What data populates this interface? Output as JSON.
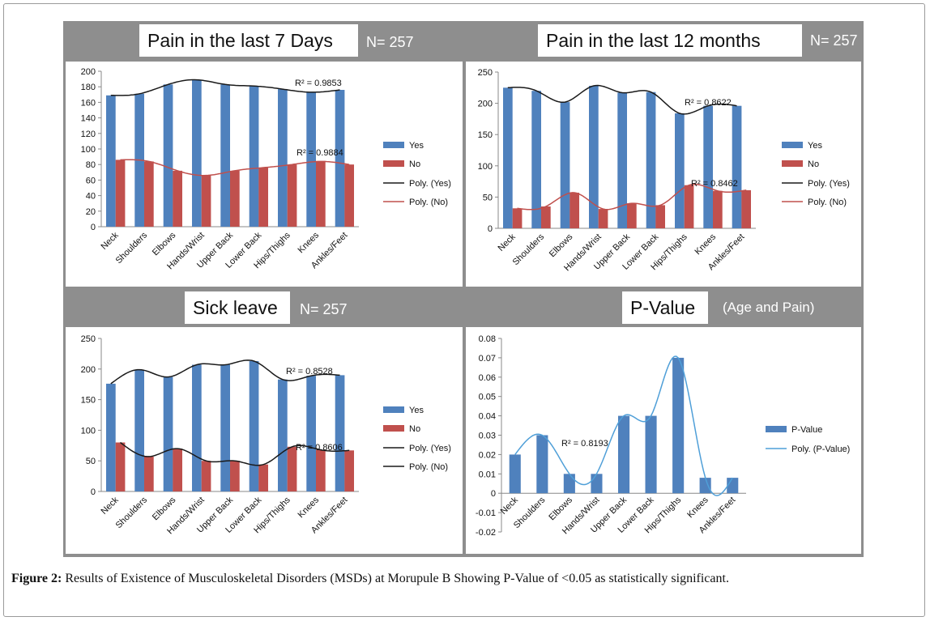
{
  "figure": {
    "caption_label": "Figure 2:",
    "caption_text": " Results of Existence of Musculoskeletal Disorders (MSDs) at Morupule B Showing P-Value of <0.05 as statistically significant."
  },
  "panels": {
    "p7": {
      "title": "Pain in the last 7 Days",
      "n": "N= 257"
    },
    "p12": {
      "title": "Pain in the last 12 months",
      "n": "N= 257"
    },
    "sick": {
      "title": "Sick leave",
      "n": "N= 257"
    },
    "pval": {
      "title": "P-Value",
      "subtitle": "(Age and Pain)"
    }
  },
  "colors": {
    "yes": "#4f81bd",
    "no": "#c0504d",
    "trend_black": "#1a1a1a",
    "trend_red": "#c0504d",
    "trend_blue": "#4f9fd8"
  },
  "chart_data": [
    {
      "id": "p7",
      "type": "bar",
      "categories": [
        "Neck",
        "Shoulders",
        "Elbows",
        "Hands/Wrist",
        "Upper Back",
        "Lower Back",
        "Hips/Thighs",
        "Knees",
        "Ankles/Feet"
      ],
      "series": [
        {
          "name": "Yes",
          "values": [
            169,
            171,
            183,
            189,
            183,
            181,
            177,
            173,
            176
          ]
        },
        {
          "name": "No",
          "values": [
            86,
            84,
            72,
            66,
            72,
            76,
            80,
            84,
            80
          ]
        }
      ],
      "trendlines": [
        {
          "name": "Poly. (Yes)",
          "r2": "R² = 0.9853"
        },
        {
          "name": "Poly. (No)",
          "r2": "R² = 0.9884"
        }
      ],
      "ylim": [
        0,
        200
      ],
      "yticks": [
        0,
        20,
        40,
        60,
        80,
        100,
        120,
        140,
        160,
        180,
        200
      ],
      "legend": "right"
    },
    {
      "id": "p12",
      "type": "bar",
      "categories": [
        "Neck",
        "Shoulders",
        "Elbows",
        "Hands/Wrist",
        "Upper Back",
        "Lower Back",
        "Hips/Thighs",
        "Knees",
        "Ankles/Feet"
      ],
      "series": [
        {
          "name": "Yes",
          "values": [
            225,
            220,
            202,
            228,
            217,
            218,
            184,
            196,
            196
          ]
        },
        {
          "name": "No",
          "values": [
            32,
            35,
            57,
            31,
            40,
            37,
            69,
            60,
            61
          ]
        }
      ],
      "trendlines": [
        {
          "name": "Poly. (Yes)",
          "r2": "R² = 0.8622"
        },
        {
          "name": "Poly. (No)",
          "r2": "R² = 0.8462"
        }
      ],
      "ylim": [
        0,
        250
      ],
      "yticks": [
        0,
        50,
        100,
        150,
        200,
        250
      ],
      "legend": "right"
    },
    {
      "id": "sick",
      "type": "bar",
      "categories": [
        "Neck",
        "Shoulders",
        "Elbows",
        "Hands/Wrist",
        "Upper Back",
        "Lower Back",
        "Hips/Thighs",
        "Knees",
        "Ankles/Feet"
      ],
      "series": [
        {
          "name": "Yes",
          "values": [
            176,
            199,
            187,
            207,
            207,
            213,
            183,
            189,
            190
          ]
        },
        {
          "name": "No",
          "values": [
            80,
            57,
            70,
            50,
            50,
            44,
            73,
            68,
            67
          ]
        }
      ],
      "trendlines": [
        {
          "name": "Poly. (Yes)",
          "r2": "R² = 0.8528"
        },
        {
          "name": "Poly. (No)",
          "r2": "R² = 0.8606"
        }
      ],
      "ylim": [
        0,
        250
      ],
      "yticks": [
        0,
        50,
        100,
        150,
        200,
        250
      ],
      "legend": "right"
    },
    {
      "id": "pval",
      "type": "bar",
      "categories": [
        "Neck",
        "Shoulders",
        "Elbows",
        "Hands/Wrist",
        "Upper Back",
        "Lower Back",
        "Hips/Thighs",
        "Knees",
        "Ankles/Feet"
      ],
      "series": [
        {
          "name": "P-Value",
          "values": [
            0.02,
            0.03,
            0.01,
            0.01,
            0.04,
            0.04,
            0.07,
            0.008,
            0.008
          ]
        }
      ],
      "trendlines": [
        {
          "name": "Poly. (P-Value)",
          "r2": "R² = 0.8193"
        }
      ],
      "ylim": [
        -0.02,
        0.08
      ],
      "yticks": [
        -0.02,
        -0.01,
        0,
        0.01,
        0.02,
        0.03,
        0.04,
        0.05,
        0.06,
        0.07,
        0.08
      ],
      "legend": "right"
    }
  ]
}
